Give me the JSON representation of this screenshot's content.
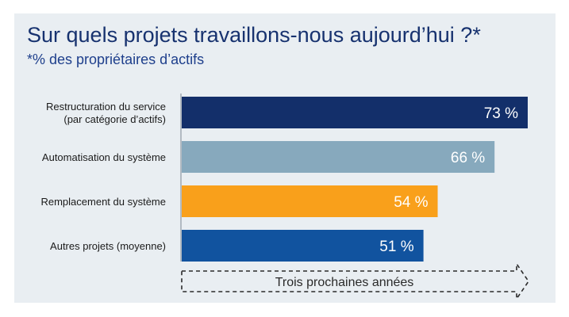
{
  "header": {
    "title": "Sur quels projets travaillons-nous aujourd’hui ?*",
    "subtitle": "*% des propriétaires d’actifs"
  },
  "banner": {
    "label": "Trois prochaines années"
  },
  "chart_data": {
    "type": "bar",
    "orientation": "horizontal",
    "categories": [
      [
        "Restructuration du service",
        "(par catégorie d’actifs)"
      ],
      [
        "Automatisation du système"
      ],
      [
        "Remplacement du système"
      ],
      [
        "Autres projets (moyenne)"
      ]
    ],
    "values": [
      73,
      66,
      54,
      51
    ],
    "value_labels": [
      "73 %",
      "66 %",
      "54 %",
      "51 %"
    ],
    "colors": [
      "#132f6a",
      "#87a9bd",
      "#f9a01b",
      "#11539f"
    ],
    "xlim": [
      0,
      73
    ],
    "grid": false,
    "legend": "none"
  }
}
